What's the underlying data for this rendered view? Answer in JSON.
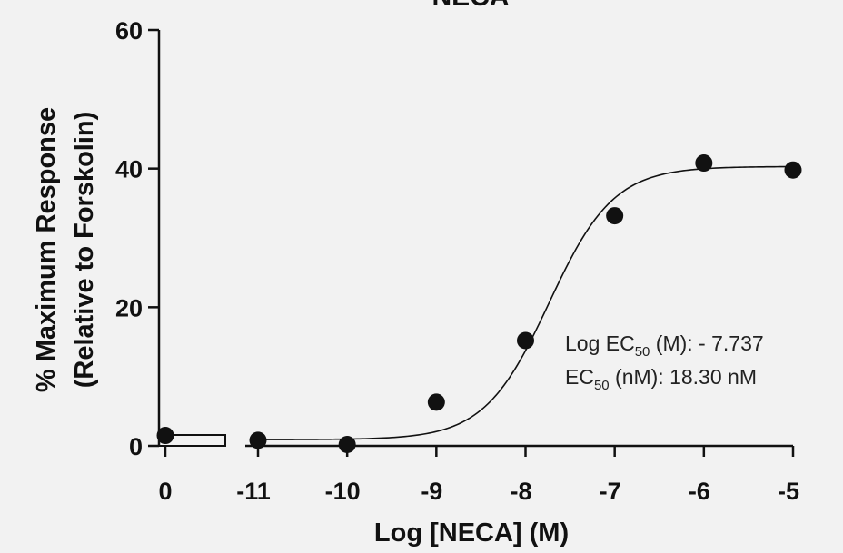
{
  "chart_data": {
    "type": "scatter",
    "title": "NECA",
    "xlabel": "Log [NECA] (M)",
    "ylabel_line1": "% Maximum Response",
    "ylabel_line2": "(Relative to Forskolin)",
    "ylim": [
      0,
      60
    ],
    "y_ticks": [
      "0",
      "20",
      "40",
      "60"
    ],
    "x_break_tick": "0",
    "x_ticks": [
      "-11",
      "-10",
      "-9",
      "-8",
      "-7",
      "-6",
      "-5"
    ],
    "xlim": [
      -11,
      -5
    ],
    "control_point": {
      "x": 0,
      "y": 1.5
    },
    "points": [
      {
        "x": -11,
        "y": 0.8
      },
      {
        "x": -10,
        "y": 0.2
      },
      {
        "x": -9,
        "y": 6.3
      },
      {
        "x": -8,
        "y": 15.2
      },
      {
        "x": -7,
        "y": 33.2
      },
      {
        "x": -6,
        "y": 40.8
      },
      {
        "x": -5,
        "y": 39.8
      }
    ],
    "fit": {
      "model": "sigmoidal dose-response",
      "bottom": 0.9,
      "top": 40.3,
      "log_ec50": -7.737,
      "hill_slope": 1.2
    },
    "annotation": {
      "line1_prefix": "Log EC",
      "line1_sub": "50",
      "line1_suffix": " (M): - 7.737",
      "line2_prefix": "EC",
      "line2_sub": "50",
      "line2_suffix": " (nM): 18.30 nM"
    },
    "colors": {
      "ink": "#111111",
      "background": "#f2f2f2"
    }
  }
}
